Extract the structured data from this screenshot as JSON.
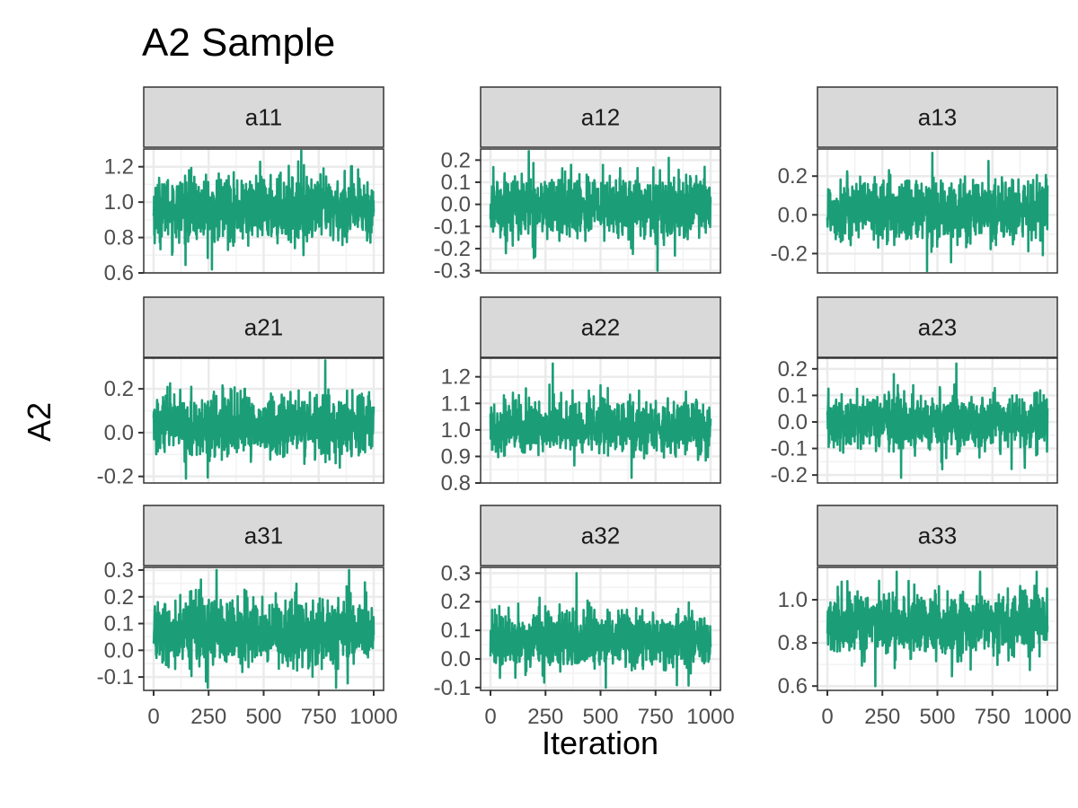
{
  "chart_data": {
    "type": "line",
    "title": "A2 Sample",
    "xlabel": "Iteration",
    "ylabel": "A2",
    "xlim": [
      0,
      1000
    ],
    "x_ticks": [
      0,
      250,
      500,
      750,
      1000
    ],
    "x_tick_labels": [
      "0",
      "250",
      "500",
      "750",
      "1000"
    ],
    "grid": true,
    "legend": "none",
    "line_color": "#1B9E77",
    "strip_fill": "#D9D9D9",
    "panels": [
      {
        "name": "a11",
        "ylim": [
          0.6,
          1.3
        ],
        "y_ticks": [
          0.6,
          0.8,
          1.0,
          1.2
        ],
        "y_tick_labels": [
          "0.6",
          "0.8",
          "1.0",
          "1.2"
        ],
        "mean": 0.96,
        "sd": 0.09,
        "min": 0.62,
        "max": 1.29
      },
      {
        "name": "a12",
        "ylim": [
          -0.31,
          0.25
        ],
        "y_ticks": [
          -0.3,
          -0.2,
          -0.1,
          0.0,
          0.1,
          0.2
        ],
        "y_tick_labels": [
          "-0.3",
          "-0.2",
          "-0.1",
          "0.0",
          "0.1",
          "0.2"
        ],
        "mean": -0.01,
        "sd": 0.07,
        "min": -0.3,
        "max": 0.24
      },
      {
        "name": "a13",
        "ylim": [
          -0.3,
          0.34
        ],
        "y_ticks": [
          -0.2,
          0.0,
          0.2
        ],
        "y_tick_labels": [
          "-0.2",
          "0.0",
          "0.2"
        ],
        "mean": 0.02,
        "sd": 0.08,
        "min": -0.29,
        "max": 0.32
      },
      {
        "name": "a21",
        "ylim": [
          -0.23,
          0.34
        ],
        "y_ticks": [
          -0.2,
          0.0,
          0.2
        ],
        "y_tick_labels": [
          "-0.2",
          "0.0",
          "0.2"
        ],
        "mean": 0.03,
        "sd": 0.07,
        "min": -0.21,
        "max": 0.33
      },
      {
        "name": "a22",
        "ylim": [
          0.8,
          1.27
        ],
        "y_ticks": [
          0.8,
          0.9,
          1.0,
          1.1,
          1.2
        ],
        "y_tick_labels": [
          "0.8",
          "0.9",
          "1.0",
          "1.1",
          "1.2"
        ],
        "mean": 1.01,
        "sd": 0.05,
        "min": 0.82,
        "max": 1.25
      },
      {
        "name": "a23",
        "ylim": [
          -0.23,
          0.24
        ],
        "y_ticks": [
          -0.2,
          -0.1,
          0.0,
          0.1,
          0.2
        ],
        "y_tick_labels": [
          "-0.2",
          "-0.1",
          "0.0",
          "0.1",
          "0.2"
        ],
        "mean": 0.0,
        "sd": 0.05,
        "min": -0.21,
        "max": 0.22
      },
      {
        "name": "a31",
        "ylim": [
          -0.15,
          0.31
        ],
        "y_ticks": [
          -0.1,
          0.0,
          0.1,
          0.2,
          0.3
        ],
        "y_tick_labels": [
          "-0.1",
          "0.0",
          "0.1",
          "0.2",
          "0.3"
        ],
        "mean": 0.07,
        "sd": 0.06,
        "min": -0.14,
        "max": 0.3
      },
      {
        "name": "a32",
        "ylim": [
          -0.11,
          0.32
        ],
        "y_ticks": [
          -0.1,
          0.0,
          0.1,
          0.2,
          0.3
        ],
        "y_tick_labels": [
          "-0.1",
          "0.0",
          "0.1",
          "0.2",
          "0.3"
        ],
        "mean": 0.07,
        "sd": 0.05,
        "min": -0.1,
        "max": 0.3
      },
      {
        "name": "a33",
        "ylim": [
          0.58,
          1.15
        ],
        "y_ticks": [
          0.6,
          0.8,
          1.0
        ],
        "y_tick_labels": [
          "0.6",
          "0.8",
          "1.0"
        ],
        "mean": 0.89,
        "sd": 0.07,
        "min": 0.6,
        "max": 1.13
      }
    ]
  }
}
